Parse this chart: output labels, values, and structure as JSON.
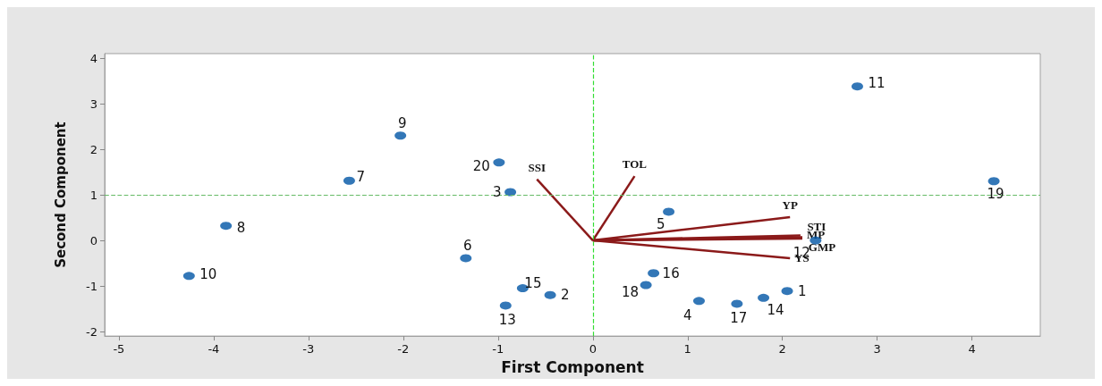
{
  "chart_data": {
    "type": "scatter",
    "xlabel": "First Component",
    "ylabel": "Second Component",
    "xlim": [
      -5.15,
      4.72
    ],
    "ylim": [
      -2.1,
      4.1
    ],
    "xticks": [
      -5,
      -4,
      -3,
      -2,
      -1,
      0,
      1,
      2,
      3,
      4
    ],
    "yticks": [
      -2,
      -1,
      0,
      1,
      2,
      3,
      4
    ],
    "grid": false,
    "legend": false,
    "series": [
      {
        "color": "#0055a5",
        "marker": "circle",
        "x": [
          2.05,
          -0.45,
          -0.87,
          1.12,
          0.8,
          -1.34,
          -2.57,
          -3.87,
          -2.03,
          -4.26,
          2.79,
          2.35,
          -0.92,
          1.8,
          -0.74,
          0.64,
          1.52,
          0.56,
          4.23,
          -0.99
        ],
        "values": [
          -1.11,
          -1.2,
          1.06,
          -1.33,
          0.63,
          -0.39,
          1.31,
          0.32,
          2.3,
          -0.78,
          3.38,
          0,
          -1.43,
          -1.26,
          -1.05,
          -0.72,
          -1.39,
          -0.98,
          1.3,
          1.71
        ]
      },
      {
        "type": "line",
        "name": "SSI",
        "color": "#8b1a1a",
        "x": [
          0,
          -0.59
        ],
        "values": [
          0,
          1.34
        ]
      },
      {
        "type": "line",
        "name": "TOL",
        "color": "#8b1a1a",
        "x": [
          0,
          0.44
        ],
        "values": [
          0,
          1.41
        ]
      },
      {
        "type": "line",
        "name": "YP",
        "color": "#8b1a1a",
        "x": [
          0,
          2.08
        ],
        "values": [
          0,
          0.51
        ]
      },
      {
        "type": "line",
        "name": "STI",
        "color": "#8b1a1a",
        "x": [
          0,
          2.19
        ],
        "values": [
          0,
          0.11
        ]
      },
      {
        "type": "line",
        "name": "MP",
        "color": "#8b1a1a",
        "x": [
          0,
          2.21
        ],
        "values": [
          0,
          0.07
        ]
      },
      {
        "type": "line",
        "name": "GMP",
        "color": "#8b1a1a",
        "x": [
          0,
          2.21
        ],
        "values": [
          0,
          0.04
        ]
      },
      {
        "type": "line",
        "name": "YS",
        "color": "#8b1a1a",
        "x": [
          0,
          2.08
        ],
        "values": [
          0,
          -0.39
        ]
      }
    ],
    "annotations": [
      {
        "text": "1",
        "x": 2.05,
        "y": -1.11
      },
      {
        "text": "2",
        "x": -0.45,
        "y": -1.2
      },
      {
        "text": "3",
        "x": -0.87,
        "y": 1.06
      },
      {
        "text": "4",
        "x": 1.12,
        "y": -1.33
      },
      {
        "text": "5",
        "x": 0.8,
        "y": 0.63
      },
      {
        "text": "6",
        "x": -1.34,
        "y": -0.39
      },
      {
        "text": "7",
        "x": -2.57,
        "y": 1.31
      },
      {
        "text": "8",
        "x": -3.87,
        "y": 0.32
      },
      {
        "text": "9",
        "x": -2.03,
        "y": 2.3
      },
      {
        "text": "10",
        "x": -4.26,
        "y": -0.78
      },
      {
        "text": "11",
        "x": 2.79,
        "y": 3.38
      },
      {
        "text": "12",
        "x": 2.35,
        "y": 0
      },
      {
        "text": "13",
        "x": -0.92,
        "y": -1.43
      },
      {
        "text": "14",
        "x": 1.8,
        "y": -1.26
      },
      {
        "text": "15",
        "x": -0.74,
        "y": -1.05
      },
      {
        "text": "16",
        "x": 0.64,
        "y": -0.72
      },
      {
        "text": "17",
        "x": 1.52,
        "y": -1.39
      },
      {
        "text": "18",
        "x": 0.56,
        "y": -0.98
      },
      {
        "text": "19",
        "x": 4.23,
        "y": 1.3
      },
      {
        "text": "20",
        "x": -0.99,
        "y": 1.71
      }
    ],
    "ref_lines": [
      {
        "axis": "x",
        "value": 0,
        "label": null,
        "color": "#33dd33",
        "line_style": "dashed"
      },
      {
        "axis": "y",
        "value": 1,
        "label": null,
        "color": "#66bb66",
        "line_style": "dashed"
      }
    ]
  }
}
